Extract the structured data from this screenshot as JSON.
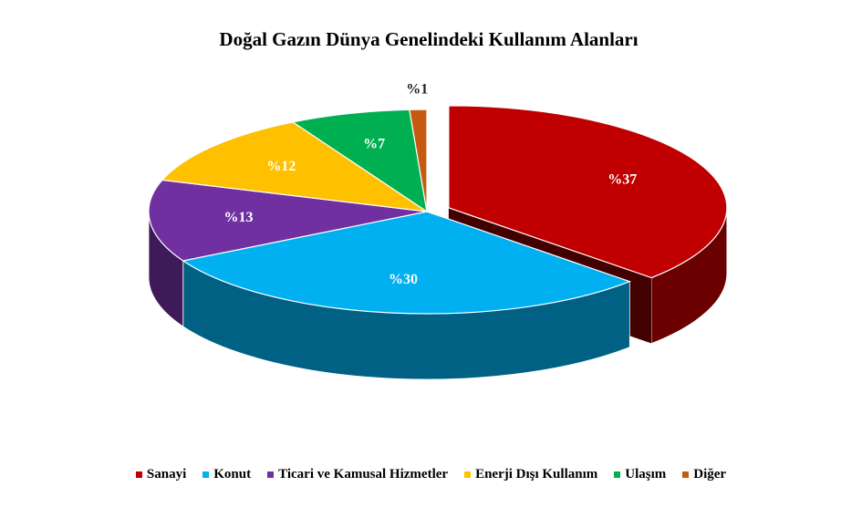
{
  "chart_data": {
    "type": "pie3d",
    "title": "Doğal Gazın Dünya Genelindeki Kullanım Alanları",
    "categories": [
      "Sanayi",
      "Konut",
      "Ticari ve Kamusal Hizmetler",
      "Enerji Dışı Kullanım",
      "Ulaşım",
      "Diğer"
    ],
    "values": [
      37,
      30,
      13,
      12,
      7,
      1
    ],
    "value_labels": [
      "%37",
      "%30",
      "%13",
      "%12",
      "%7",
      "%1"
    ],
    "colors": [
      "#c00000",
      "#00b0f0",
      "#7030a0",
      "#ffc000",
      "#00b050",
      "#c55a11"
    ],
    "legend": "bottom"
  }
}
